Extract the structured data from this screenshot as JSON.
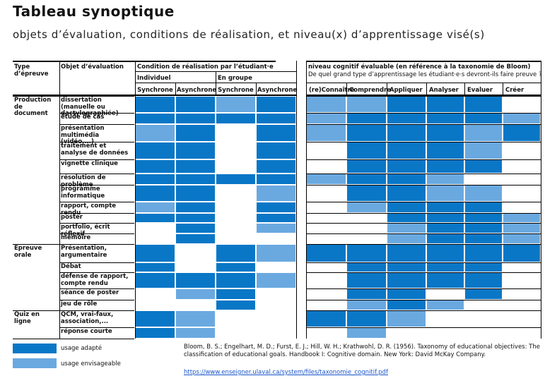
{
  "title": "Tableau synoptique",
  "subtitle": "objets d’évaluation, conditions de réalisation, et niveau(x) d’apprentissage visé(s)",
  "colors": {
    "adapte": "#0a77c6",
    "envisageable": "#6aa9e0",
    "empty": "#ffffff"
  },
  "headers": {
    "type": "Type d’épreuve",
    "objet": "Objet d’évaluation",
    "condition": "Condition de réalisation par l’étudiant·e",
    "individuel": "Individuel",
    "en_groupe": "En groupe",
    "cond_cols": [
      "Synchrone",
      "Asynchrone",
      "Synchrone",
      "Asynchrone"
    ],
    "niveau_title": "niveau cognitif évaluable (en référence à la taxonomie de Bloom)",
    "niveau_sub": "De quel grand type d’apprentissage les étudiant·e·s devront-ils faire preuve ?",
    "niveau_cols": [
      "(re)Connaître",
      "Comprendre",
      "Appliquer",
      "Analyser",
      "Evaluer",
      "Créer"
    ]
  },
  "groups": [
    {
      "label": "Production de document",
      "rows": [
        0,
        10
      ]
    },
    {
      "label": "Epreuve orale",
      "rows": [
        11,
        15
      ]
    },
    {
      "label": "Quiz en ligne",
      "rows": [
        16,
        17
      ]
    }
  ],
  "rows": [
    {
      "label": "dissertation (manuelle ou dactylographiée)",
      "cond": [
        2,
        2,
        1,
        2
      ],
      "niv": [
        1,
        1,
        2,
        2,
        2,
        0
      ]
    },
    {
      "label": "étude de cas",
      "cond": [
        2,
        2,
        2,
        2
      ],
      "niv": [
        1,
        2,
        2,
        2,
        2,
        1
      ]
    },
    {
      "label": "présentation multimédia (vidéo,...)",
      "cond": [
        1,
        2,
        0,
        2
      ],
      "niv": [
        1,
        2,
        2,
        2,
        1,
        2
      ]
    },
    {
      "label": "traitement et analyse de données",
      "cond": [
        2,
        2,
        0,
        2
      ],
      "niv": [
        0,
        2,
        2,
        2,
        1,
        0
      ]
    },
    {
      "label": "vignette clinique",
      "cond": [
        2,
        2,
        0,
        2
      ],
      "niv": [
        0,
        2,
        2,
        2,
        2,
        0
      ]
    },
    {
      "label": "résolution de problème",
      "cond": [
        2,
        2,
        2,
        2
      ],
      "niv": [
        1,
        2,
        2,
        1,
        0,
        0
      ]
    },
    {
      "label": "programme informatique",
      "cond": [
        2,
        2,
        0,
        1
      ],
      "niv": [
        0,
        2,
        2,
        1,
        1,
        0
      ]
    },
    {
      "label": "rapport, compte rendu",
      "cond": [
        1,
        2,
        0,
        2
      ],
      "niv": [
        0,
        1,
        2,
        2,
        2,
        0
      ]
    },
    {
      "label": "poster",
      "cond": [
        2,
        2,
        0,
        2
      ],
      "niv": [
        0,
        0,
        2,
        2,
        2,
        1
      ]
    },
    {
      "label": "portfolio, écrit réflexif",
      "cond": [
        0,
        2,
        0,
        1
      ],
      "niv": [
        0,
        0,
        1,
        2,
        2,
        1
      ]
    },
    {
      "label": "mémoire",
      "cond": [
        0,
        2,
        0,
        0
      ],
      "niv": [
        0,
        0,
        1,
        2,
        2,
        1
      ]
    },
    {
      "label": "Présentation, argumentaire",
      "cond": [
        2,
        0,
        2,
        1
      ],
      "niv": [
        2,
        2,
        2,
        2,
        2,
        2
      ]
    },
    {
      "label": "Débat",
      "cond": [
        2,
        0,
        2,
        0
      ],
      "niv": [
        0,
        2,
        2,
        2,
        2,
        0
      ]
    },
    {
      "label": "défense de rapport, compte rendu",
      "cond": [
        2,
        2,
        2,
        1
      ],
      "niv": [
        0,
        2,
        2,
        2,
        2,
        0
      ]
    },
    {
      "label": "séance de poster",
      "cond": [
        0,
        1,
        2,
        0
      ],
      "niv": [
        0,
        2,
        2,
        0,
        2,
        0
      ]
    },
    {
      "label": "jeu de rôle",
      "cond": [
        0,
        0,
        2,
        0
      ],
      "niv": [
        0,
        1,
        2,
        1,
        0,
        0
      ]
    },
    {
      "label": "QCM, vrai-faux, association,...",
      "cond": [
        2,
        1,
        0,
        0
      ],
      "niv": [
        2,
        2,
        1,
        0,
        0,
        0
      ]
    },
    {
      "label": "réponse courte",
      "cond": [
        2,
        1,
        0,
        0
      ],
      "niv": [
        0,
        1,
        0,
        0,
        0,
        0
      ]
    }
  ],
  "legend": {
    "adapte": "usage adapté",
    "envisageable": "usage envisageable"
  },
  "reference": "Bloom, B. S.; Engelhart, M. D.; Furst, E. J.; Hill, W. H.; Krathwohl, D. R. (1956). Taxonomy of educational objectives: The classification of educational goals. Handbook I: Cognitive domain. New York: David McKay Company.",
  "link": "https://www.enseigner.ulaval.ca/system/files/taxonomie_cognitif.pdf"
}
